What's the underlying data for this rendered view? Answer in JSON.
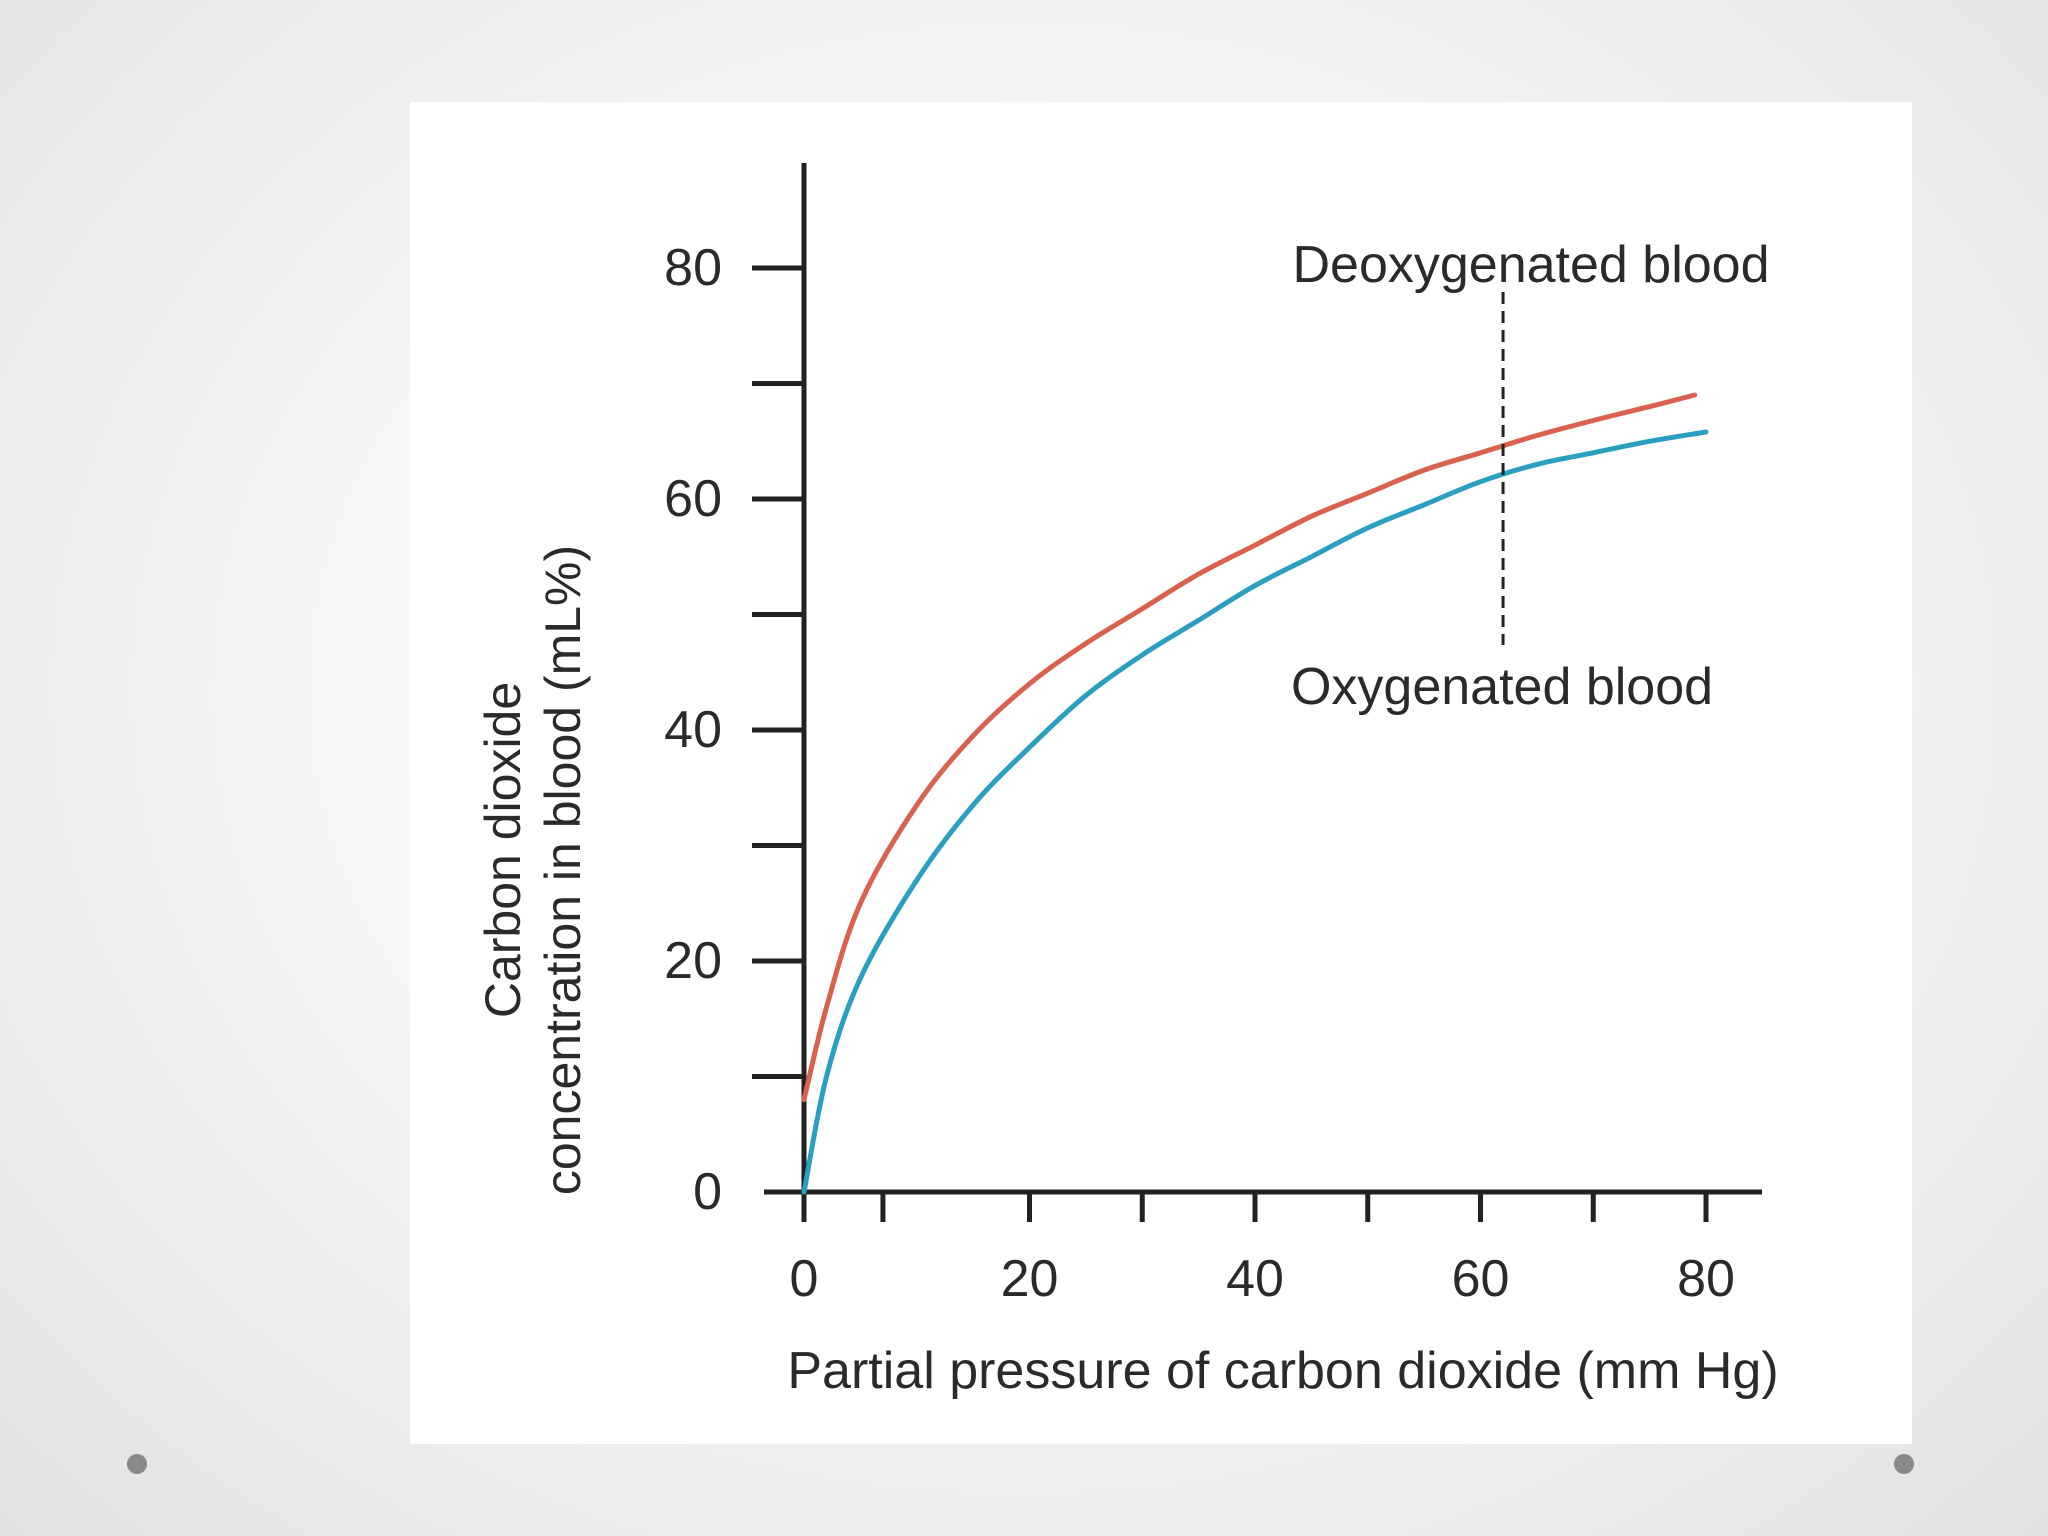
{
  "chart_data": {
    "type": "line",
    "title": "",
    "xlabel": "Partial pressure of carbon dioxide (mm Hg)",
    "ylabel_lines": [
      "Carbon dioxide",
      "concentration in blood (mL%)"
    ],
    "xlim": [
      0,
      80
    ],
    "ylim": [
      0,
      80
    ],
    "x_ticks": [
      0,
      20,
      40,
      60,
      80
    ],
    "y_ticks": [
      0,
      20,
      40,
      60,
      80
    ],
    "x_minor_ticks": [
      7,
      30,
      50,
      70
    ],
    "y_minor_ticks": [
      10,
      30,
      50,
      70
    ],
    "grid": false,
    "legend": "none",
    "series": [
      {
        "name": "Deoxygenated blood",
        "color": "#d9614e",
        "x": [
          0,
          2,
          5,
          10,
          15,
          20,
          25,
          30,
          35,
          40,
          45,
          50,
          55,
          60,
          65,
          70,
          75,
          79
        ],
        "y": [
          8,
          16,
          25,
          33.5,
          39.5,
          44,
          47.5,
          50.5,
          53.5,
          56,
          58.5,
          60.5,
          62.5,
          64,
          65.5,
          66.8,
          68,
          69
        ]
      },
      {
        "name": "Oxygenated blood",
        "color": "#2a9fc0",
        "x": [
          0,
          2,
          5,
          10,
          15,
          20,
          25,
          30,
          35,
          40,
          45,
          50,
          55,
          60,
          65,
          70,
          75,
          80
        ],
        "y": [
          0,
          10,
          18.5,
          27,
          33.5,
          38.5,
          43,
          46.5,
          49.5,
          52.5,
          55,
          57.5,
          59.5,
          61.5,
          63,
          64,
          65,
          65.8
        ]
      }
    ],
    "annotations": [
      {
        "text": "Deoxygenated blood",
        "series": 0
      },
      {
        "text": "Oxygenated blood",
        "series": 1
      }
    ],
    "annotation_marker_x": 62
  }
}
